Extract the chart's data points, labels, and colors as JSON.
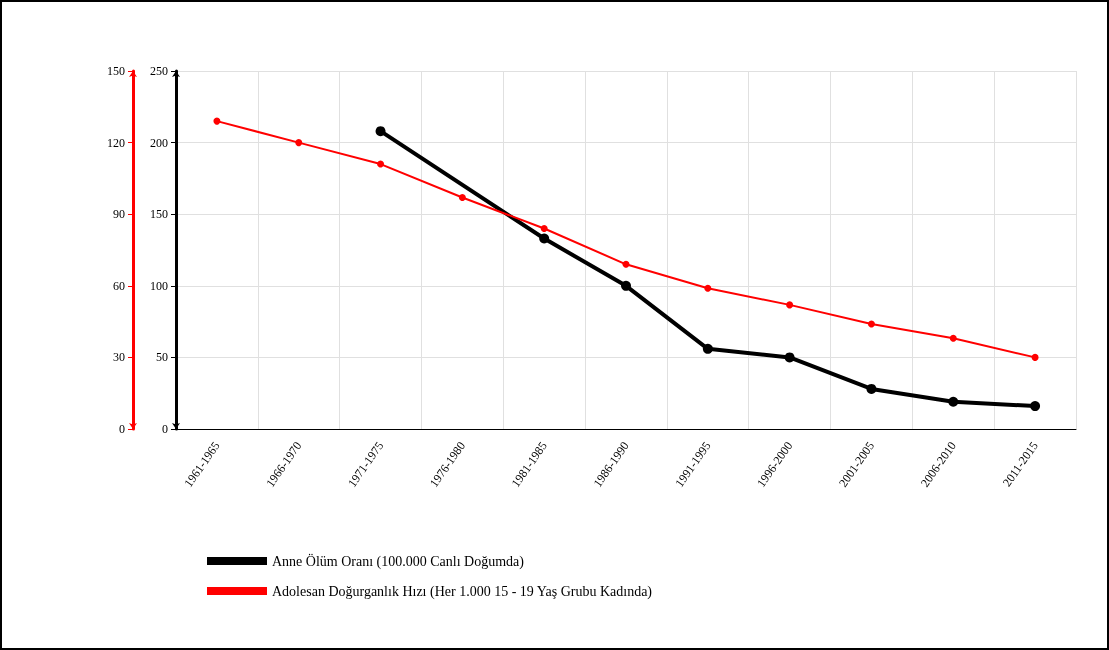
{
  "chart_data": {
    "type": "line",
    "categories": [
      "1961-1965",
      "1966-1970",
      "1971-1975",
      "1976-1980",
      "1981-1985",
      "1986-1990",
      "1991-1995",
      "1996-2000",
      "2001-2005",
      "2006-2010",
      "2011-2015"
    ],
    "series": [
      {
        "name": "Anne Ölüm Oranı (100.000 Canlı Doğumda)",
        "color": "#000000",
        "axis": "y",
        "values": [
          null,
          null,
          208,
          null,
          133,
          100,
          56,
          50,
          28,
          19,
          16
        ]
      },
      {
        "name": "Adolesan Doğurganlık Hızı (Her 1.000 15 - 19 Yaş Grubu Kadında)",
        "color": "#ff0000",
        "axis": "y2",
        "values": [
          129,
          120,
          111,
          97,
          84,
          69,
          59,
          52,
          44,
          38,
          30
        ]
      }
    ],
    "ylim": [
      0,
      250
    ],
    "yticks": [
      0,
      50,
      100,
      150,
      200,
      250
    ],
    "y2lim": [
      0,
      150
    ],
    "y2ticks": [
      0,
      30,
      60,
      90,
      120,
      150
    ],
    "grid": true,
    "legend": "bottom left",
    "marker": "circle",
    "line_style": "solid"
  }
}
